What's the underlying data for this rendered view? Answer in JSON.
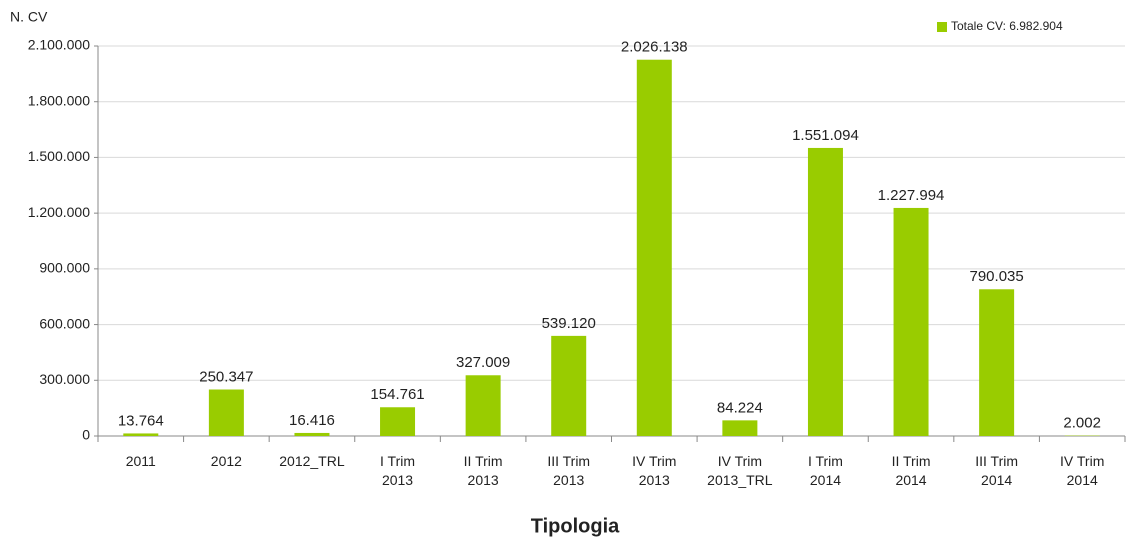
{
  "chart_data": {
    "type": "bar",
    "y_label": "N. CV",
    "x_label": "Tipologia",
    "categories": [
      "2011",
      "2012",
      "2012_TRL",
      "I Trim\n2013",
      "II Trim\n2013",
      "III Trim\n2013",
      "IV Trim\n2013",
      "IV Trim\n2013_TRL",
      "I Trim\n2014",
      "II Trim\n2014",
      "III Trim\n2014",
      "IV Trim\n2014"
    ],
    "series": [
      {
        "name": "Totale CV: 6.982.904",
        "color": "#99cc00",
        "values": [
          13764,
          250347,
          16416,
          154761,
          327009,
          539120,
          2026138,
          84224,
          1551094,
          1227994,
          790035,
          2002
        ],
        "value_labels": [
          "13.764",
          "250.347",
          "16.416",
          "154.761",
          "327.009",
          "539.120",
          "2.026.138",
          "84.224",
          "1.551.094",
          "1.227.994",
          "790.035",
          "2.002"
        ]
      }
    ],
    "ylim": [
      0,
      2100000
    ],
    "yticks": [
      0,
      {
        "value": 300000,
        "label": "300.000"
      },
      {
        "value": 600000,
        "label": "600.000"
      },
      {
        "value": 900000,
        "label": "900.000"
      },
      {
        "value": 1200000,
        "label": "1.200.000"
      },
      {
        "value": 1500000,
        "label": "1.500.000"
      },
      {
        "value": 1800000,
        "label": "1.800.000"
      },
      {
        "value": 2100000,
        "label": "2.100.000"
      }
    ],
    "grid": true,
    "legend": "top-right"
  }
}
